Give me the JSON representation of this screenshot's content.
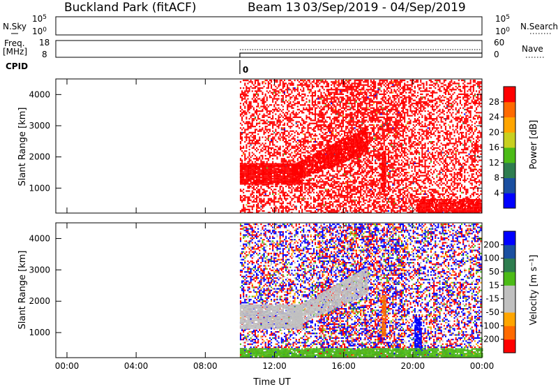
{
  "header": {
    "station": "Buckland Park (fitACF)",
    "beam": "Beam 13",
    "dates": "03/Sep/2019 - 04/Sep/2019"
  },
  "nsky_panel": {
    "left_label": "N.Sky",
    "right_label": "N.Search",
    "left_ticks": [
      {
        "base": "10",
        "exp": "5"
      },
      {
        "base": "10",
        "exp": "0"
      }
    ],
    "right_ticks": [
      {
        "base": "10",
        "exp": "5"
      },
      {
        "base": "10",
        "exp": "0"
      }
    ]
  },
  "freq_panel": {
    "label_line1": "Freq.",
    "label_line2": "[MHz]",
    "left_ticks": [
      "18",
      "8"
    ],
    "right_ticks": [
      "60",
      "0"
    ],
    "right_label": "Nave",
    "start_hour": 10
  },
  "cpid_panel": {
    "label": "CPID",
    "value": "0"
  },
  "colors": {
    "power": [
      "#0000ff",
      "#1a4fa0",
      "#2e7d4f",
      "#4cbb17",
      "#c8d020",
      "#ffa500",
      "#ff6a00",
      "#ff0000"
    ],
    "velocity": [
      "#ff0000",
      "#ff6a00",
      "#ffa500",
      "#c0c0c0",
      "#c0c0c0",
      "#4cbb17",
      "#2e7d4f",
      "#1a4fa0",
      "#0000ff"
    ],
    "ground_scatter": "#c0c0c0"
  },
  "chart_data": [
    {
      "type": "heatmap",
      "title": "",
      "ylabel": "Slant Range [km]",
      "xlabel": "",
      "x_ticks": [
        "00:00",
        "04:00",
        "08:00",
        "12:00",
        "16:00",
        "20:00",
        "00:00"
      ],
      "y_ticks": [
        "1000",
        "2000",
        "3000",
        "4000"
      ],
      "xlim_hours": [
        0,
        24
      ],
      "ylim_km": [
        200,
        4500
      ],
      "data_start_hour": 10,
      "colorbar": {
        "label": "Power [dB]",
        "ticks": [
          "4",
          "8",
          "12",
          "16",
          "20",
          "24",
          "28"
        ]
      },
      "features": [
        {
          "kind": "dense_band",
          "t": [
            10,
            13.6
          ],
          "range_km": [
            1150,
            1800
          ],
          "value": 30
        },
        {
          "kind": "rising_arc",
          "t": [
            13,
            17.4
          ],
          "range_km_start": 1500,
          "range_km_end": 2600,
          "value": 30
        },
        {
          "kind": "spike",
          "t": [
            18.2,
            18.45
          ],
          "range_km": [
            900,
            2200
          ],
          "value": 30
        },
        {
          "kind": "ground_strip",
          "t": [
            20.2,
            24
          ],
          "range_km": [
            250,
            650
          ],
          "value": 30
        }
      ]
    },
    {
      "type": "heatmap",
      "title": "",
      "ylabel": "Slant Range [km]",
      "xlabel": "Time UT",
      "x_ticks": [
        "00:00",
        "04:00",
        "08:00",
        "12:00",
        "16:00",
        "20:00",
        "00:00"
      ],
      "y_ticks": [
        "1000",
        "2000",
        "3000",
        "4000"
      ],
      "xlim_hours": [
        0,
        24
      ],
      "ylim_km": [
        200,
        4500
      ],
      "data_start_hour": 10,
      "colorbar": {
        "label": "Velocity [m s⁻¹]",
        "ticks": [
          "200",
          "100",
          "50",
          "15",
          "-15",
          "-50",
          "-100",
          "-200"
        ]
      },
      "features": [
        {
          "kind": "ground_band",
          "t": [
            10,
            13.6
          ],
          "range_km": [
            1150,
            1900
          ],
          "value": "ground"
        },
        {
          "kind": "ground_arc",
          "t": [
            13,
            17.4
          ],
          "range_km_start": 1500,
          "range_km_end": 2700,
          "value": "ground"
        },
        {
          "kind": "spike",
          "t": [
            18.2,
            18.45
          ],
          "range_km": [
            900,
            2200
          ],
          "value": -60
        },
        {
          "kind": "spike",
          "t": [
            20.1,
            20.45
          ],
          "range_km": [
            300,
            1500
          ],
          "value": 220
        },
        {
          "kind": "low_strip",
          "t": [
            10,
            24
          ],
          "range_km": [
            250,
            500
          ],
          "value": 20
        }
      ]
    }
  ]
}
